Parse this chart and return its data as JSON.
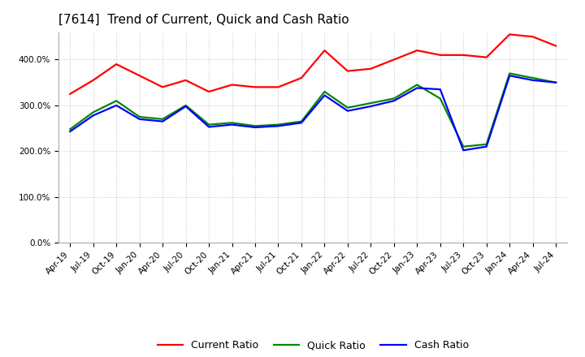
{
  "title": "[7614]  Trend of Current, Quick and Cash Ratio",
  "x_labels": [
    "Apr-19",
    "Jul-19",
    "Oct-19",
    "Jan-20",
    "Apr-20",
    "Jul-20",
    "Oct-20",
    "Jan-21",
    "Apr-21",
    "Jul-21",
    "Oct-21",
    "Jan-22",
    "Apr-22",
    "Jul-22",
    "Oct-22",
    "Jan-23",
    "Apr-23",
    "Jul-23",
    "Oct-23",
    "Jan-24",
    "Apr-24",
    "Jul-24"
  ],
  "current_ratio": [
    325,
    355,
    390,
    365,
    340,
    355,
    330,
    345,
    340,
    340,
    360,
    420,
    375,
    380,
    400,
    420,
    410,
    410,
    405,
    455,
    450,
    430
  ],
  "quick_ratio": [
    248,
    285,
    310,
    275,
    270,
    300,
    258,
    262,
    255,
    258,
    265,
    330,
    295,
    305,
    315,
    345,
    315,
    210,
    215,
    370,
    360,
    350
  ],
  "cash_ratio": [
    243,
    278,
    300,
    270,
    265,
    298,
    253,
    258,
    252,
    255,
    262,
    322,
    288,
    298,
    310,
    338,
    335,
    202,
    210,
    365,
    355,
    350
  ],
  "current_color": "#ff0000",
  "quick_color": "#008800",
  "cash_color": "#0000ff",
  "line_width": 1.6,
  "ylim": [
    0,
    460
  ],
  "yticks": [
    0,
    100,
    200,
    300,
    400
  ],
  "ytick_labels": [
    "0.0%",
    "100.0%",
    "200.0%",
    "300.0%",
    "400.0%"
  ],
  "background_color": "#ffffff",
  "plot_bg_color": "#ffffff",
  "grid_color": "#bbbbbb",
  "title_fontsize": 11,
  "tick_fontsize": 7.5,
  "legend_fontsize": 9
}
